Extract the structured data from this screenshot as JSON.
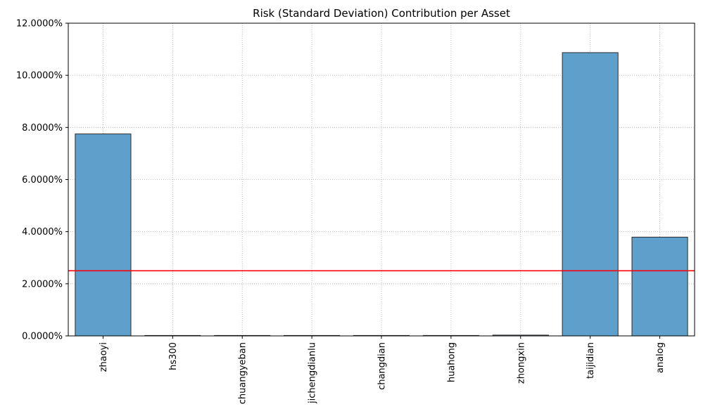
{
  "chart_data": {
    "type": "bar",
    "title": "Risk (Standard Deviation) Contribution per Asset",
    "xlabel": "",
    "ylabel": "",
    "categories": [
      "zhaoyi",
      "hs300",
      "chuangyeban",
      "jichengdianlu",
      "changdian",
      "huahong",
      "zhongxin",
      "taijidian",
      "analog"
    ],
    "values": [
      7.75,
      0.0,
      0.0,
      0.0,
      0.0,
      0.0,
      0.03,
      10.87,
      3.79
    ],
    "ylim": [
      0,
      12
    ],
    "yticks": [
      0,
      2,
      4,
      6,
      8,
      10,
      12
    ],
    "ytick_labels": [
      "0.0000%",
      "2.0000%",
      "4.0000%",
      "6.0000%",
      "8.0000%",
      "10.0000%",
      "12.0000%"
    ],
    "reference_line": 2.5,
    "reference_line_color": "#ff0000",
    "bar_color": "#5f9fcc",
    "bar_edge_color": "#2b2b2b",
    "grid": true,
    "grid_style": "dotted"
  }
}
